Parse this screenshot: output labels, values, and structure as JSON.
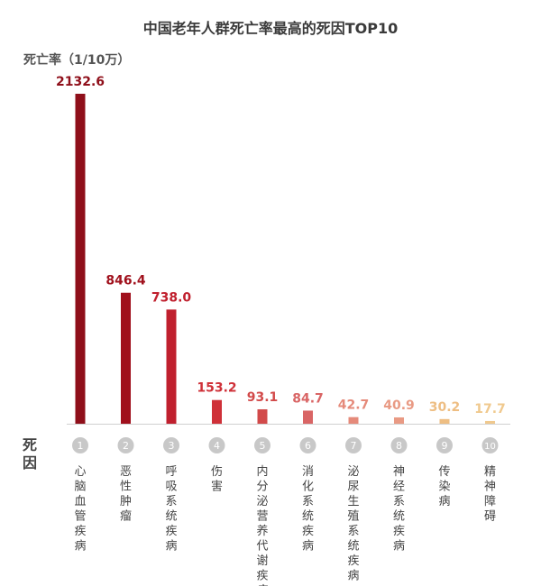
{
  "chart_data": {
    "type": "bar",
    "title": "中国老年人群死亡率最高的死因TOP10",
    "ylabel": "死亡率（1/10万）",
    "xlabel": "死因",
    "ranks": [
      "1",
      "2",
      "3",
      "4",
      "5",
      "6",
      "7",
      "8",
      "9",
      "10"
    ],
    "categories": [
      "心脑血管疾病",
      "恶性肿瘤",
      "呼吸系统疾病",
      "伤害",
      "内分泌营养代谢疾病",
      "消化系统疾病",
      "泌尿生殖系统疾病",
      "神经系统疾病",
      "传染病",
      "精神障碍"
    ],
    "values": [
      2132.6,
      846.4,
      738.0,
      153.2,
      93.1,
      84.7,
      42.7,
      40.9,
      30.2,
      17.7
    ],
    "value_labels": [
      "2132.6",
      "846.4",
      "738.0",
      "153.2",
      "93.1",
      "84.7",
      "42.7",
      "40.9",
      "30.2",
      "17.7"
    ],
    "colors": [
      "#8f0f1a",
      "#a0101c",
      "#c0202e",
      "#cf3038",
      "#d24a4a",
      "#d96565",
      "#e58a7a",
      "#e99a84",
      "#eebe83",
      "#f0c98e"
    ],
    "ylim": [
      0,
      2132.6
    ],
    "grid": false
  }
}
